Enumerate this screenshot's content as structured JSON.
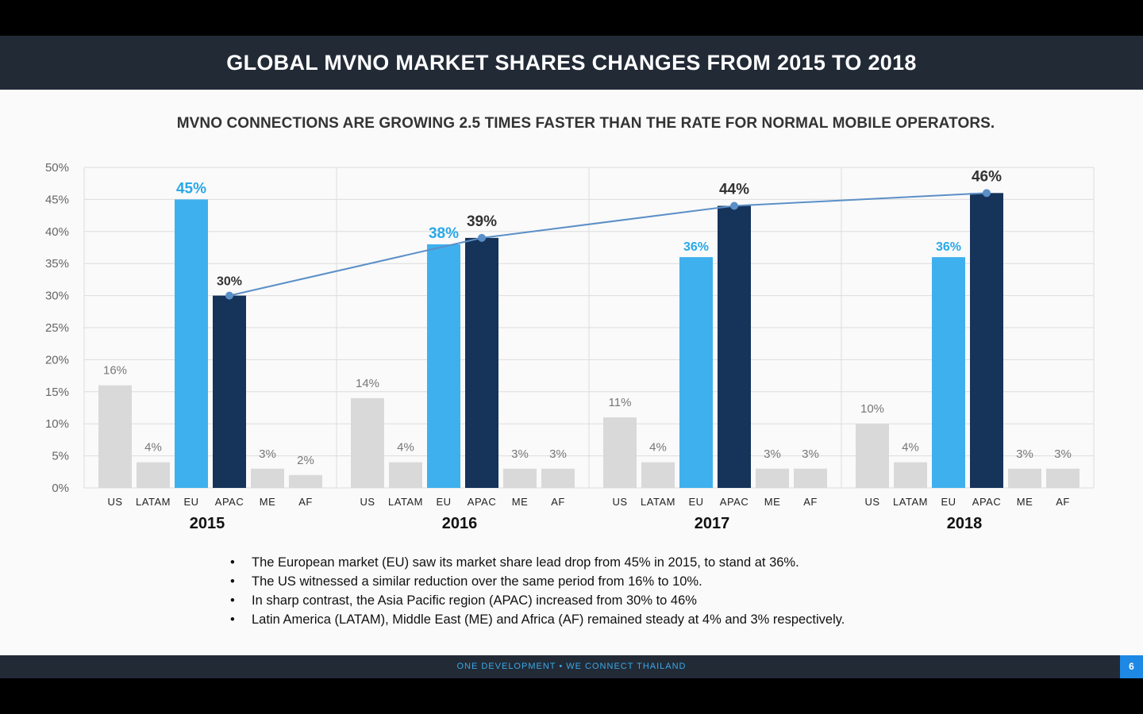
{
  "title": "GLOBAL MVNO MARKET SHARES CHANGES FROM 2015 TO 2018",
  "subtitle": "MVNO CONNECTIONS ARE GROWING 2.5 TIMES FASTER THAN THE RATE FOR NORMAL MOBILE OPERATORS.",
  "bullets": [
    "The European market (EU) saw its market share lead drop from 45% in 2015, to stand at 36%.",
    "The US witnessed a similar reduction over the same period from 16% to 10%.",
    "In sharp contrast, the Asia Pacific region (APAC) increased from 30% to 46%",
    "Latin America (LATAM), Middle East (ME) and Africa (AF) remained steady at 4% and 3% respectively."
  ],
  "footer": {
    "left_text": "ONE DEVELOPMENT",
    "separator": "•",
    "right_text": "WE CONNECT THAILAND",
    "page_number": "6"
  },
  "colors": {
    "header_bg": "#222a36",
    "eu": "#3fb0ee",
    "apac": "#16335a",
    "other": "#d9d9d9",
    "trend_line": "#5b8fc7",
    "eu_label": "#29a8e8",
    "footer_text": "#3aa8e6"
  },
  "chart_data": {
    "type": "bar",
    "groups": [
      "2015",
      "2016",
      "2017",
      "2018"
    ],
    "categories": [
      "US",
      "LATAM",
      "EU",
      "APAC",
      "ME",
      "AF"
    ],
    "values": {
      "2015": [
        16,
        4,
        45,
        30,
        3,
        2
      ],
      "2016": [
        14,
        4,
        38,
        39,
        3,
        3
      ],
      "2017": [
        11,
        4,
        36,
        44,
        3,
        3
      ],
      "2018": [
        10,
        4,
        36,
        46,
        3,
        3
      ]
    },
    "labels": {
      "2015": [
        "16%",
        "4%",
        "45%",
        "30%",
        "3%",
        "2%"
      ],
      "2016": [
        "14%",
        "4%",
        "38%",
        "39%",
        "3%",
        "3%"
      ],
      "2017": [
        "11%",
        "4%",
        "36%",
        "44%",
        "3%",
        "3%"
      ],
      "2018": [
        "10%",
        "4%",
        "36%",
        "46%",
        "3%",
        "3%"
      ]
    },
    "trend_line": {
      "category": "APAC",
      "values": [
        30,
        39,
        44,
        46
      ]
    },
    "y_ticks": [
      "0%",
      "5%",
      "10%",
      "15%",
      "20%",
      "25%",
      "30%",
      "35%",
      "40%",
      "45%",
      "50%"
    ],
    "ylim": [
      0,
      50
    ],
    "grid": true
  }
}
